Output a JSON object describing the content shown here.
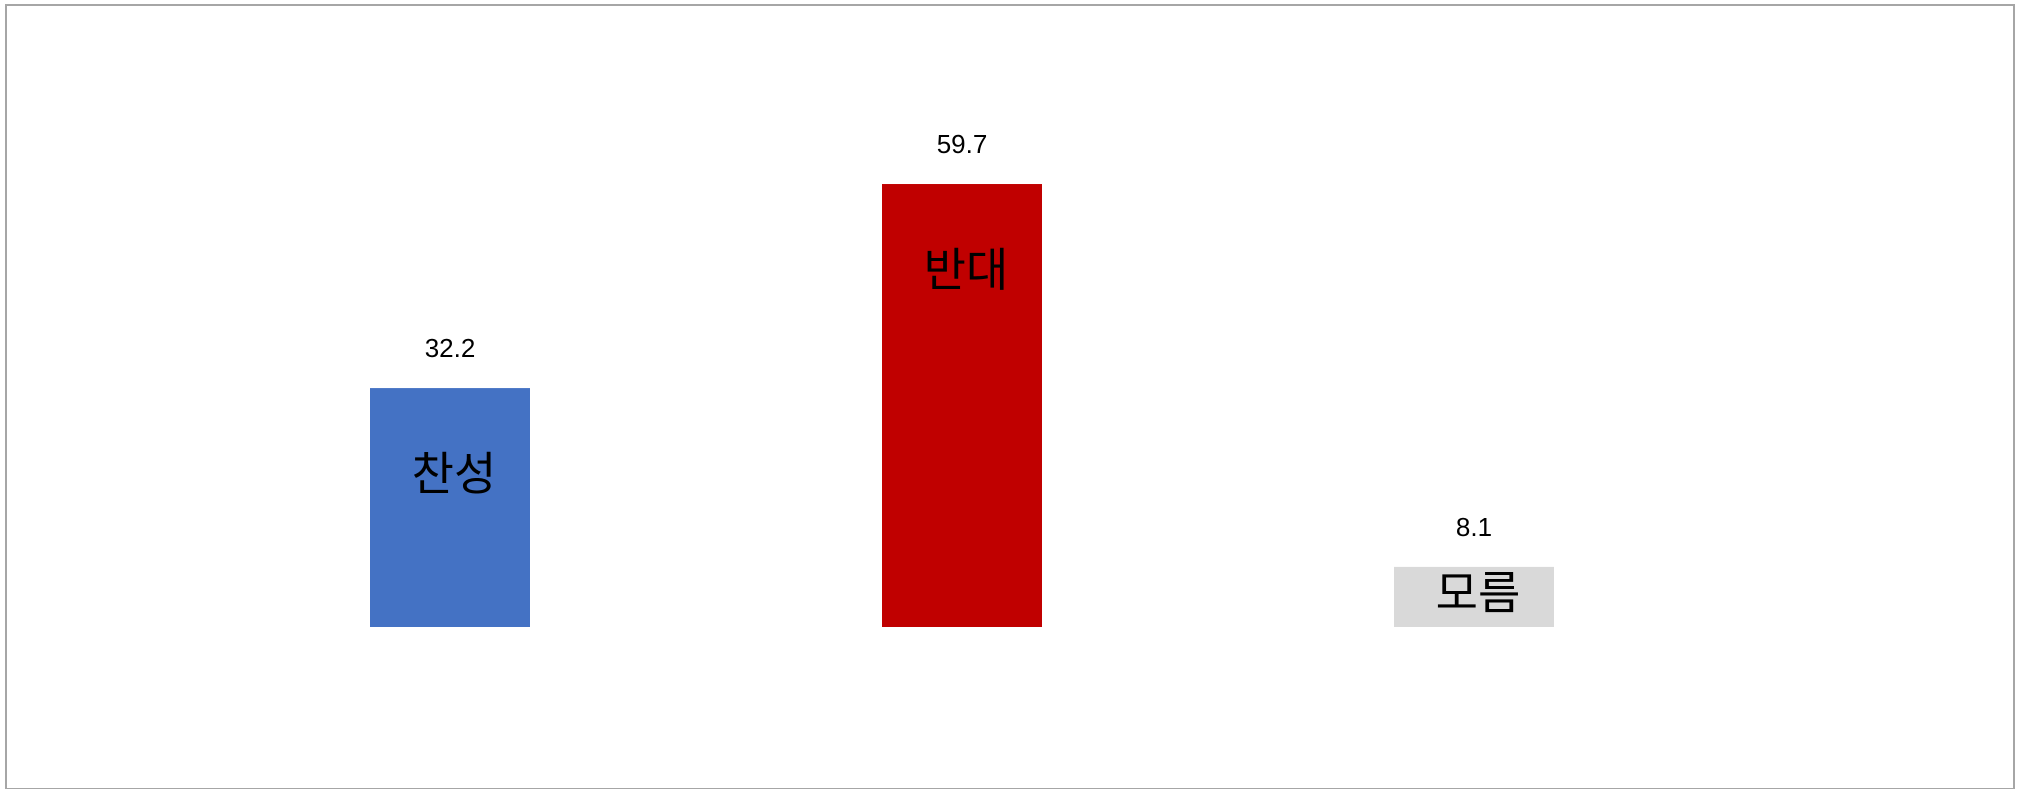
{
  "chart_data": {
    "type": "bar",
    "categories": [
      "찬성",
      "반대",
      "모름"
    ],
    "values": [
      32.2,
      59.7,
      8.1
    ],
    "colors": [
      "#4472c4",
      "#c00000",
      "#d9d9d9"
    ]
  }
}
